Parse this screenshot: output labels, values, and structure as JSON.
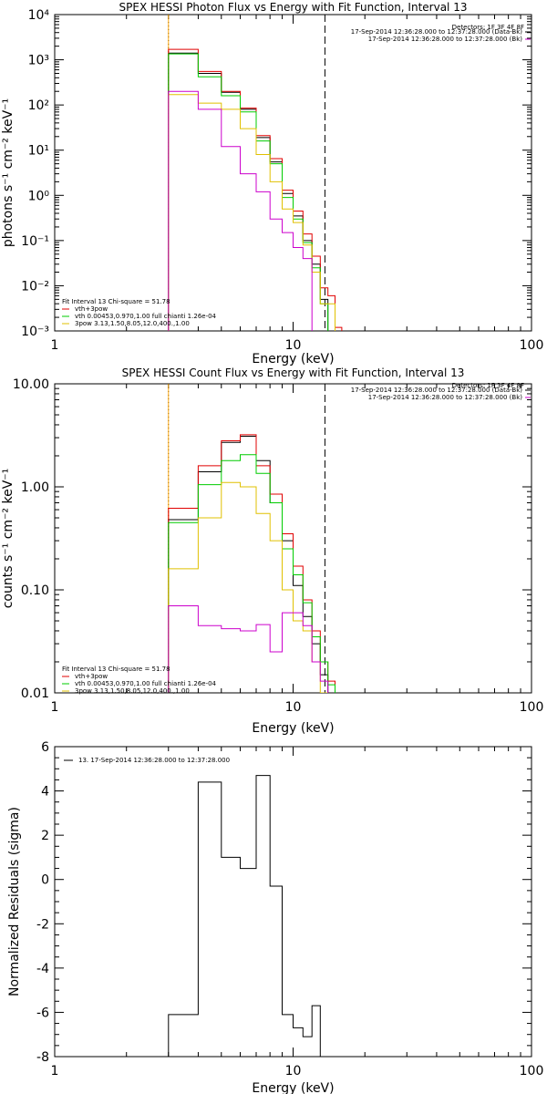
{
  "chart_data": [
    {
      "type": "line",
      "title": "SPEX HESSI Photon Flux vs Energy with Fit Function, Interval 13",
      "xlabel": "Energy (keV)",
      "ylabel": "photons s⁻¹ cm⁻² keV⁻¹",
      "xscale": "log",
      "yscale": "log",
      "xlim": [
        1,
        100
      ],
      "ylim": [
        0.001,
        10000
      ],
      "xticks": [
        {
          "v": 1,
          "label": "1"
        },
        {
          "v": 10,
          "label": "10"
        },
        {
          "v": 100,
          "label": "100"
        }
      ],
      "yticks": [
        {
          "v": 0.001,
          "label": "10⁻³"
        },
        {
          "v": 0.01,
          "label": "10⁻²"
        },
        {
          "v": 0.1,
          "label": "10⁻¹"
        },
        {
          "v": 1,
          "label": "10⁰"
        },
        {
          "v": 10,
          "label": "10¹"
        },
        {
          "v": 100,
          "label": "10²"
        },
        {
          "v": 1000,
          "label": "10³"
        },
        {
          "v": 10000,
          "label": "10⁴"
        }
      ],
      "edges": [
        3,
        4,
        5,
        6,
        7,
        8,
        9,
        10,
        11,
        12,
        13,
        14,
        15,
        16
      ],
      "vlines": [
        {
          "x": 3,
          "style": "dotted",
          "color": "#000000"
        },
        {
          "x": 3,
          "style": "solid",
          "color": "#ffa500"
        },
        {
          "x": 13.6,
          "style": "dashed",
          "color": "#000000"
        }
      ],
      "series": [
        {
          "color": "#000000",
          "values": [
            1400,
            500,
            190,
            80,
            19,
            5.5,
            1.1,
            0.35,
            0.1,
            0.03,
            0.005,
            null,
            null
          ]
        },
        {
          "color": "#e00000",
          "values": [
            1700,
            550,
            200,
            85,
            21,
            6.5,
            1.3,
            0.45,
            0.14,
            0.045,
            0.009,
            0.006,
            0.0012
          ]
        },
        {
          "color": "#00cc00",
          "values": [
            1350,
            420,
            160,
            70,
            16,
            5,
            0.9,
            0.3,
            0.09,
            0.025,
            0.004,
            null,
            null
          ]
        },
        {
          "color": "#e0c000",
          "values": [
            170,
            110,
            80,
            30,
            8,
            2,
            0.5,
            0.25,
            0.08,
            0.02,
            0.004,
            0.004,
            null
          ]
        },
        {
          "color": "#cc00cc",
          "values": [
            200,
            80,
            12,
            3,
            1.2,
            0.3,
            0.15,
            0.07,
            0.04,
            null,
            null,
            null,
            null
          ]
        }
      ],
      "legend_top": {
        "header": "Detectors: 1F 3F 4F 8F",
        "entries": [
          {
            "text": "17-Sep-2014 12:36:28.000 to 12:37:28.000 (Data-Bk)",
            "color": "#000000"
          },
          {
            "text": "17-Sep-2014 12:36:28.000 to 12:37:28.000 (Bk)",
            "color": "#cc00cc"
          }
        ]
      },
      "legend_fit": {
        "header": "Fit Interval 13   Chi-square = 51.78",
        "entries": [
          {
            "text": "vth+3pow",
            "color": "#e00000"
          },
          {
            "text": "vth 0.00453,0.970,1.00   full chianti 1.26e-04",
            "color": "#00cc00"
          },
          {
            "text": "3pow 3.13,1.50,8.05,12.0,400.,1.00",
            "color": "#e0c000"
          }
        ]
      }
    },
    {
      "type": "line",
      "title": "SPEX HESSI Count Flux vs Energy with Fit Function, Interval 13",
      "xlabel": "Energy (keV)",
      "ylabel": "counts s⁻¹ cm⁻² keV⁻¹",
      "xscale": "log",
      "yscale": "log",
      "xlim": [
        1,
        100
      ],
      "ylim": [
        0.01,
        10
      ],
      "xticks": [
        {
          "v": 1,
          "label": "1"
        },
        {
          "v": 10,
          "label": "10"
        },
        {
          "v": 100,
          "label": "100"
        }
      ],
      "yticks": [
        {
          "v": 0.01,
          "label": "0.01"
        },
        {
          "v": 0.1,
          "label": "0.10"
        },
        {
          "v": 1,
          "label": "1.00"
        },
        {
          "v": 10,
          "label": "10.00"
        }
      ],
      "edges": [
        3,
        4,
        5,
        6,
        7,
        8,
        9,
        10,
        11,
        12,
        13,
        14,
        15,
        16
      ],
      "vlines": [
        {
          "x": 3,
          "style": "dotted",
          "color": "#000000"
        },
        {
          "x": 3,
          "style": "solid",
          "color": "#ffa500"
        },
        {
          "x": 13.6,
          "style": "dashed",
          "color": "#000000"
        }
      ],
      "series": [
        {
          "color": "#000000",
          "values": [
            0.48,
            1.4,
            2.7,
            3.1,
            1.8,
            0.7,
            0.3,
            0.11,
            0.055,
            0.03,
            0.015,
            null,
            null
          ]
        },
        {
          "color": "#e00000",
          "values": [
            0.62,
            1.6,
            2.8,
            3.2,
            1.6,
            0.85,
            0.35,
            0.17,
            0.08,
            0.04,
            0.02,
            0.013,
            null
          ]
        },
        {
          "color": "#00cc00",
          "values": [
            0.45,
            1.05,
            1.8,
            2.05,
            1.35,
            0.7,
            0.25,
            0.14,
            0.075,
            0.035,
            0.02,
            0.012,
            null
          ]
        },
        {
          "color": "#e0c000",
          "values": [
            0.16,
            0.5,
            1.1,
            1.0,
            0.55,
            0.3,
            0.1,
            0.05,
            0.04,
            0.02,
            0.01,
            null,
            null
          ]
        },
        {
          "color": "#cc00cc",
          "values": [
            0.07,
            0.045,
            0.042,
            0.04,
            0.046,
            0.025,
            0.06,
            0.06,
            0.045,
            0.02,
            0.013,
            null,
            null
          ]
        }
      ],
      "legend_top": {
        "header": "Detectors: 1F 3F 4F 8F",
        "entries": [
          {
            "text": "17-Sep-2014 12:36:28.000 to 12:37:28.000 (Data-Bk)",
            "color": "#000000"
          },
          {
            "text": "17-Sep-2014 12:36:28.000 to 12:37:28.000 (Bk)",
            "color": "#cc00cc"
          }
        ]
      },
      "legend_fit": {
        "header": "Fit Interval 13   Chi-square = 51.78",
        "entries": [
          {
            "text": "vth+3pow",
            "color": "#e00000"
          },
          {
            "text": "vth 0.00453,0.970,1.00   full chianti 1.26e-04",
            "color": "#00cc00"
          },
          {
            "text": "3pow 3.13,1.50,8.05,12.0,400.,1.00",
            "color": "#e0c000"
          }
        ]
      }
    },
    {
      "type": "line",
      "xlabel": "Energy (keV)",
      "ylabel": "Normalized Residuals (sigma)",
      "xscale": "log",
      "yscale": "linear",
      "xlim": [
        1,
        100
      ],
      "ylim": [
        -8,
        6
      ],
      "xticks": [
        {
          "v": 1,
          "label": "1"
        },
        {
          "v": 10,
          "label": "10"
        },
        {
          "v": 100,
          "label": "100"
        }
      ],
      "yticks": [
        {
          "v": -8,
          "label": "-8"
        },
        {
          "v": -6,
          "label": "-6"
        },
        {
          "v": -4,
          "label": "-4"
        },
        {
          "v": -2,
          "label": "-2"
        },
        {
          "v": 0,
          "label": "0"
        },
        {
          "v": 2,
          "label": "2"
        },
        {
          "v": 4,
          "label": "4"
        },
        {
          "v": 6,
          "label": "6"
        }
      ],
      "edges": [
        3,
        4,
        5,
        6,
        7,
        8,
        9,
        10,
        11,
        12,
        13
      ],
      "series": [
        {
          "color": "#000000",
          "values": [
            -6.1,
            4.4,
            1.0,
            0.5,
            4.7,
            -0.3,
            -6.1,
            -6.7,
            -7.1,
            -5.7
          ]
        }
      ],
      "legend_top": {
        "entries": [
          {
            "text": "13. 17-Sep-2014 12:36:28.000 to 12:37:28.000",
            "color": "#000000"
          }
        ]
      }
    }
  ]
}
